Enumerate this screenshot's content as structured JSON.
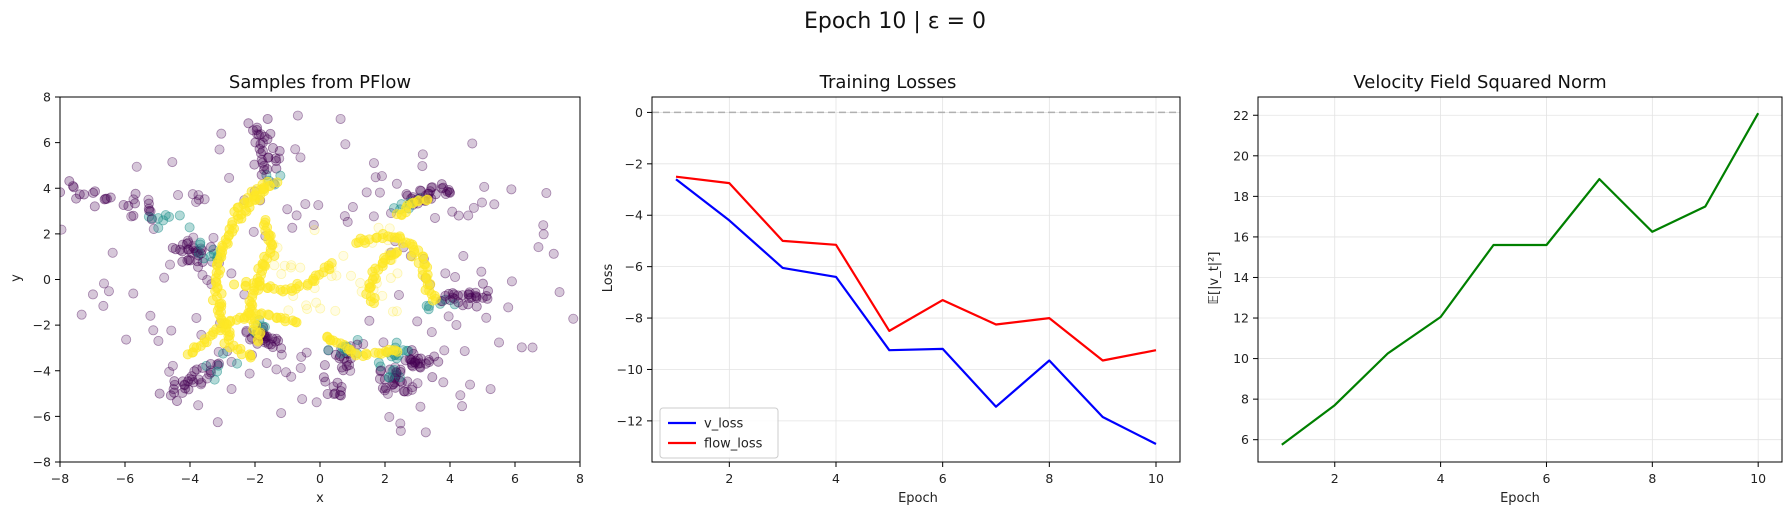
{
  "figure": {
    "suptitle": "Epoch 10 | ε = 0"
  },
  "chart_data": [
    {
      "type": "scatter",
      "title": "Samples from PFlow",
      "xlabel": "x",
      "ylabel": "y",
      "xlim": [
        -8,
        8
      ],
      "ylim": [
        -8,
        8
      ],
      "xticks": [
        -8,
        -6,
        -4,
        -2,
        0,
        2,
        4,
        6,
        8
      ],
      "yticks": [
        -8,
        -6,
        -4,
        -2,
        0,
        2,
        4,
        6,
        8
      ],
      "grid": false,
      "colormap": "viridis",
      "colors": {
        "low": "#440154",
        "mid": "#21918c",
        "high": "#fde725"
      },
      "arms": [
        {
          "from": [
            -1.4,
            4.0
          ],
          "to": [
            -2.0,
            7.0
          ]
        },
        {
          "from": [
            2.6,
            3.3
          ],
          "to": [
            3.8,
            4.0
          ]
        },
        {
          "from": [
            -4.3,
            2.5
          ],
          "to": [
            -8.0,
            4.0
          ]
        },
        {
          "from": [
            3.5,
            -1.0
          ],
          "to": [
            5.0,
            -0.7
          ]
        },
        {
          "from": [
            2.4,
            -3.1
          ],
          "to": [
            3.5,
            -4.0
          ]
        },
        {
          "from": [
            -1.8,
            -2.0
          ],
          "to": [
            -1.5,
            -3.0
          ]
        },
        {
          "from": [
            -2.9,
            -3.6
          ],
          "to": [
            -4.5,
            -4.8
          ]
        },
        {
          "from": [
            0.8,
            -2.7
          ],
          "to": [
            0.5,
            -5.0
          ]
        },
        {
          "from": [
            2.1,
            -4.0
          ],
          "to": [
            2.3,
            -4.7
          ]
        },
        {
          "from": [
            -3.3,
            1.2
          ],
          "to": [
            -4.2,
            1.1
          ]
        }
      ],
      "paths": [
        [
          [
            -1.6,
            4.2
          ],
          [
            -2.1,
            3.4
          ],
          [
            -2.6,
            2.5
          ],
          [
            -3.0,
            1.4
          ],
          [
            -3.2,
            0.1
          ],
          [
            -3.1,
            -1.5
          ],
          [
            -2.8,
            -2.8
          ],
          [
            -2.1,
            -3.5
          ]
        ],
        [
          [
            -1.7,
            2.6
          ],
          [
            -1.5,
            1.3
          ],
          [
            -1.9,
            0.2
          ],
          [
            -2.2,
            -1.6
          ],
          [
            -1.8,
            -2.8
          ]
        ],
        [
          [
            -2.5,
            -0.2
          ],
          [
            -1.5,
            -0.4
          ],
          [
            -0.8,
            -0.5
          ],
          [
            -0.2,
            0.0
          ],
          [
            0.4,
            0.8
          ]
        ],
        [
          [
            0.1,
            -2.5
          ],
          [
            0.6,
            -2.9
          ],
          [
            1.3,
            -3.3
          ],
          [
            2.0,
            -3.2
          ],
          [
            2.5,
            -3.0
          ]
        ],
        [
          [
            1.1,
            1.6
          ],
          [
            2.0,
            1.9
          ],
          [
            2.5,
            1.8
          ],
          [
            2.9,
            1.4
          ],
          [
            3.2,
            0.7
          ],
          [
            3.3,
            -0.3
          ],
          [
            3.6,
            -1.0
          ]
        ],
        [
          [
            2.4,
            2.8
          ],
          [
            2.8,
            3.3
          ],
          [
            3.4,
            3.6
          ]
        ],
        [
          [
            1.6,
            -1.0
          ],
          [
            1.5,
            -0.4
          ],
          [
            1.7,
            0.4
          ],
          [
            2.2,
            1.0
          ],
          [
            2.5,
            1.2
          ]
        ],
        [
          [
            -4.0,
            -3.3
          ],
          [
            -3.5,
            -2.6
          ],
          [
            -2.9,
            -1.9
          ],
          [
            -2.2,
            -1.5
          ],
          [
            -1.3,
            -1.6
          ],
          [
            -0.6,
            -1.9
          ]
        ],
        [
          [
            -2.6,
            3.0
          ],
          [
            -2.0,
            3.8
          ],
          [
            -1.3,
            4.3
          ]
        ]
      ]
    },
    {
      "type": "line",
      "title": "Training Losses",
      "xlabel": "Epoch",
      "ylabel": "Loss",
      "xlim": [
        0.55,
        10.45
      ],
      "ylim": [
        -13.6,
        0.6
      ],
      "xticks": [
        2,
        4,
        6,
        8,
        10
      ],
      "yticks": [
        -12,
        -10,
        -8,
        -6,
        -4,
        -2,
        0
      ],
      "grid": true,
      "legend": "lower-left",
      "reference_line": {
        "y": 0,
        "color": "#b0b0b0"
      },
      "x": [
        1,
        2,
        3,
        4,
        5,
        6,
        7,
        8,
        9,
        10
      ],
      "series": [
        {
          "name": "v_loss",
          "color": "#0000ff",
          "values": [
            -2.6,
            -4.2,
            -6.05,
            -6.4,
            -9.25,
            -9.2,
            -11.45,
            -9.65,
            -11.85,
            -12.9
          ]
        },
        {
          "name": "flow_loss",
          "color": "#ff0000",
          "values": [
            -2.5,
            -2.75,
            -5.0,
            -5.15,
            -8.5,
            -7.3,
            -8.25,
            -8.0,
            -9.65,
            -9.25
          ]
        }
      ]
    },
    {
      "type": "line",
      "title": "Velocity Field Squared Norm",
      "xlabel": "Epoch",
      "ylabel": "𝔼[|v_t|²]",
      "xlim": [
        0.55,
        10.45
      ],
      "ylim": [
        4.9,
        22.9
      ],
      "xticks": [
        2,
        4,
        6,
        8,
        10
      ],
      "yticks": [
        6,
        8,
        10,
        12,
        14,
        16,
        18,
        20,
        22
      ],
      "grid": true,
      "x": [
        1,
        2,
        3,
        4,
        5,
        6,
        7,
        8,
        9,
        10
      ],
      "series": [
        {
          "color": "#008000",
          "values": [
            5.75,
            7.7,
            10.25,
            12.05,
            15.6,
            15.6,
            18.85,
            16.25,
            17.5,
            22.1
          ]
        }
      ]
    }
  ]
}
